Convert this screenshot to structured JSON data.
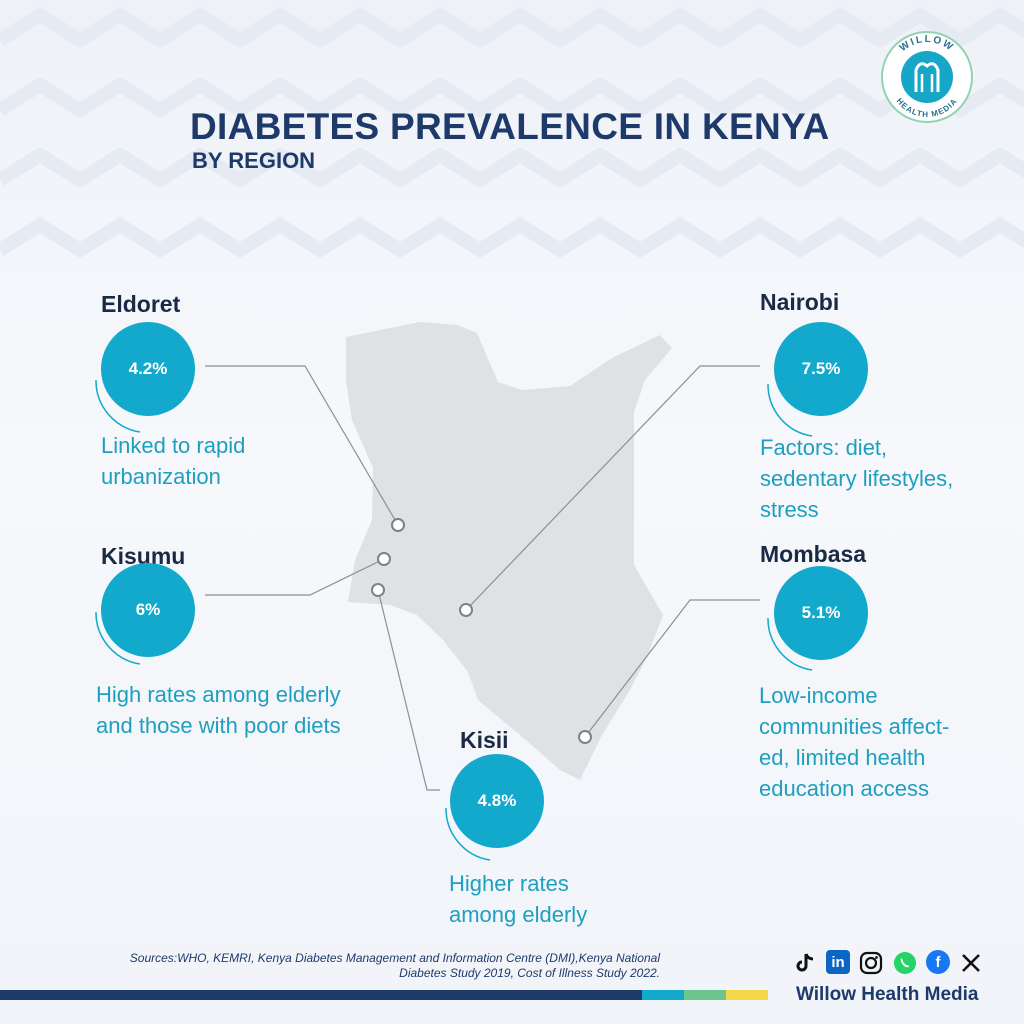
{
  "title": "DIABETES PREVALENCE IN KENYA",
  "subtitle": "BY REGION",
  "brand": {
    "logo_text_top": "WILLOW",
    "logo_text_bottom": "HEALTH MEDIA",
    "name": "Willow Health Media"
  },
  "colors": {
    "accent": "#12a9cc",
    "navy": "#1e3a6b",
    "map_fill": "#dfe1e5",
    "note": "#1e9fc0"
  },
  "regions": {
    "eldoret": {
      "name": "Eldoret",
      "value": "4.2%",
      "prevalence_percent": 4.2,
      "note_lines": [
        "Linked to rapid",
        "urbanization"
      ]
    },
    "kisumu": {
      "name": "Kisumu",
      "value": "6%",
      "prevalence_percent": 6,
      "note_lines": [
        "High rates among elderly",
        "and those with poor diets"
      ]
    },
    "kisii": {
      "name": "Kisii",
      "value": "4.8%",
      "prevalence_percent": 4.8,
      "note_lines": [
        "Higher rates",
        "among elderly"
      ]
    },
    "nairobi": {
      "name": "Nairobi",
      "value": "7.5%",
      "prevalence_percent": 7.5,
      "note_lines": [
        "Factors: diet,",
        "sedentary lifestyles,",
        "stress"
      ]
    },
    "mombasa": {
      "name": "Mombasa",
      "value": "5.1%",
      "prevalence_percent": 5.1,
      "note_lines": [
        "Low-income",
        "communities affect-",
        "ed, limited health",
        "education access"
      ]
    }
  },
  "sources": {
    "line1": "Sources:WHO, KEMRI, Kenya Diabetes Management and Information Centre (DMI),Kenya National",
    "line2": "Diabetes Study 2019, Cost of Illness Study 2022."
  },
  "social_icons": [
    "tiktok-icon",
    "linkedin-icon",
    "instagram-icon",
    "whatsapp-icon",
    "facebook-icon",
    "x-icon"
  ]
}
